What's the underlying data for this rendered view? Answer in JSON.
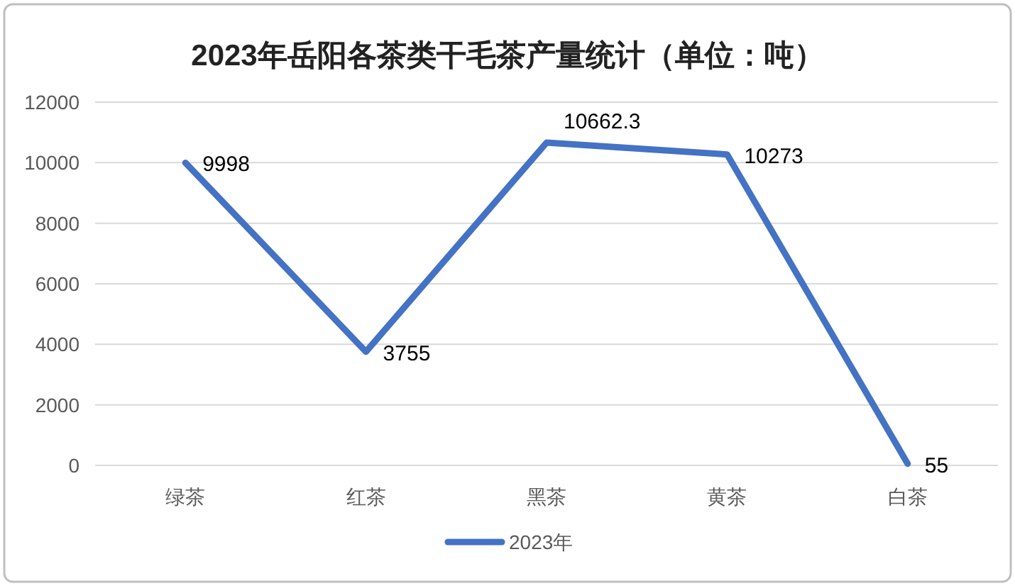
{
  "chart_data": {
    "type": "line",
    "title": "2023年岳阳各茶类干毛茶产量统计（单位：吨）",
    "categories": [
      "绿茶",
      "红茶",
      "黑茶",
      "黄茶",
      "白茶"
    ],
    "series": [
      {
        "name": "2023年",
        "color": "#4472c4",
        "values": [
          9998,
          3755,
          10662.3,
          10273,
          55
        ]
      }
    ],
    "ylim": [
      0,
      12000
    ],
    "yticks": [
      0,
      2000,
      4000,
      6000,
      8000,
      10000,
      12000
    ],
    "grid": "y",
    "legend": "bottom",
    "data_labels": true
  }
}
